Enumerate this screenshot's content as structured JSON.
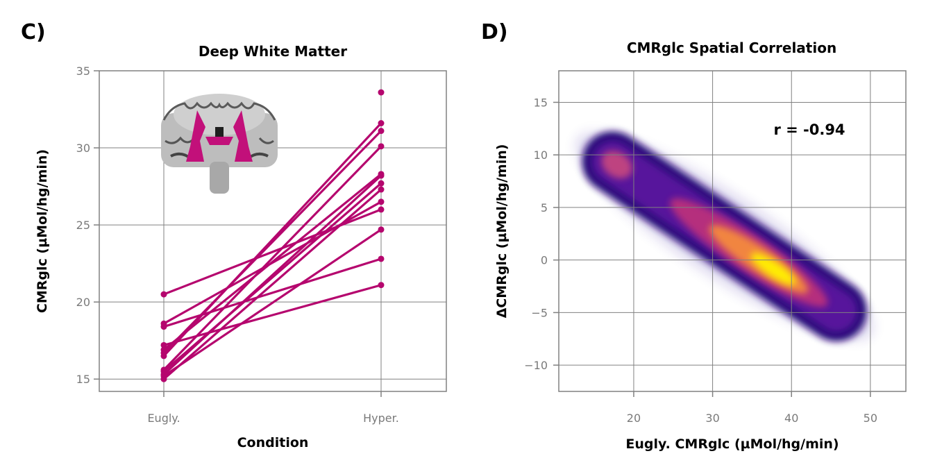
{
  "panels": {
    "c": {
      "letter": "C)"
    },
    "d": {
      "letter": "D)"
    }
  },
  "icons": {
    "brain_slice": "coronal-brain-slice-icon"
  },
  "colors": {
    "series": "#b5066e",
    "grid": "#808080",
    "tick_text": "#7a7a7a",
    "density_low": "#2a0a7a",
    "density_mid": "#c0307a",
    "density_high": "#fff200"
  },
  "chart_data": [
    {
      "type": "line",
      "title": "Deep White Matter",
      "xlabel": "Condition",
      "ylabel": "CMRglc (µMol/hg/min)",
      "categories": [
        "Eugly.",
        "Hyper."
      ],
      "ylim": [
        14.2,
        35
      ],
      "yticks": [
        15,
        20,
        25,
        30,
        35
      ],
      "grid": true,
      "series": [
        {
          "values": [
            20.5,
            26.0
          ]
        },
        {
          "values": [
            18.6,
            26.5
          ]
        },
        {
          "values": [
            18.4,
            22.8
          ]
        },
        {
          "values": [
            17.2,
            21.1
          ]
        },
        {
          "values": [
            16.9,
            28.3
          ]
        },
        {
          "values": [
            16.7,
            31.1
          ]
        },
        {
          "values": [
            16.5,
            31.6
          ]
        },
        {
          "values": [
            15.6,
            30.1
          ]
        },
        {
          "values": [
            15.5,
            27.7
          ]
        },
        {
          "values": [
            15.3,
            28.2
          ]
        },
        {
          "values": [
            15.2,
            24.7
          ]
        },
        {
          "values": [
            15.0,
            27.3
          ]
        }
      ],
      "extra_points": [
        {
          "category": "Hyper.",
          "value": 33.6
        }
      ]
    },
    {
      "type": "scatter",
      "subtype": "density",
      "title": "CMRglc Spatial Correlation",
      "xlabel": "Eugly. CMRglc (µMol/hg/min)",
      "ylabel": "ΔCMRglc (µMol/hg/min)",
      "xlim": [
        10.5,
        54.5
      ],
      "ylim": [
        -12.5,
        18
      ],
      "xticks": [
        20,
        30,
        40,
        50
      ],
      "yticks": [
        -10,
        -5,
        0,
        5,
        10,
        15
      ],
      "ytick_labels": [
        "−10",
        "−5",
        "0",
        "5",
        "10",
        "15"
      ],
      "grid": true,
      "annotation": "r = -0.94",
      "trend": {
        "start": [
          16,
          10
        ],
        "end": [
          47,
          -5.5
        ]
      }
    }
  ]
}
